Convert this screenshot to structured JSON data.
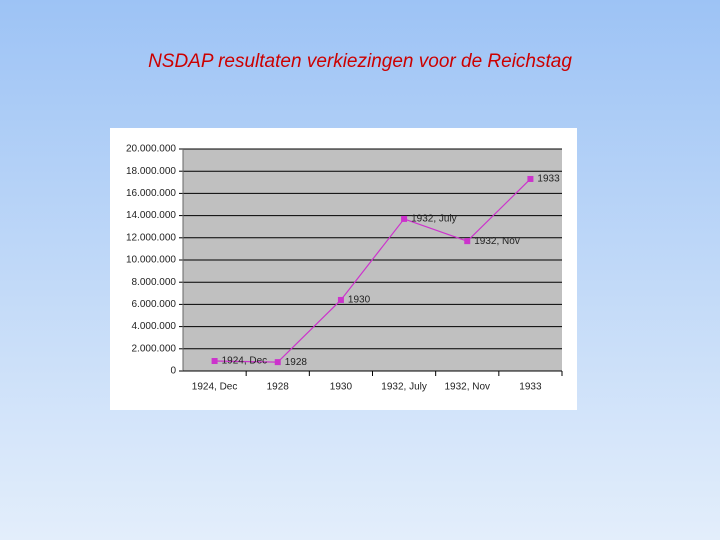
{
  "chart_data": {
    "type": "line",
    "title": "NSDAP resultaten verkiezingen voor de Reichstag",
    "categories": [
      "1924, Dec",
      "1928",
      "1930",
      "1932, July",
      "1932, Nov",
      "1933"
    ],
    "series": [
      {
        "color": "#cc33cc",
        "values": [
          900000,
          800000,
          6400000,
          13700000,
          11700000,
          17300000
        ]
      }
    ],
    "ylim": [
      0,
      20000000
    ],
    "yticks": [
      0,
      {
        "value": 2000000,
        "label": "2.000.000"
      },
      {
        "value": 4000000,
        "label": "4.000.000"
      },
      {
        "value": 6000000,
        "label": "6.000.000"
      },
      {
        "value": 8000000,
        "label": "8.000.000"
      },
      {
        "value": 10000000,
        "label": "10.000.000"
      },
      {
        "value": 12000000,
        "label": "12.000.000"
      },
      {
        "value": 14000000,
        "label": "14.000.000"
      },
      {
        "value": 16000000,
        "label": "16.000.000"
      },
      {
        "value": 18000000,
        "label": "18.000.000"
      },
      {
        "value": 20000000,
        "label": "20.000.000"
      }
    ],
    "grid": true
  }
}
